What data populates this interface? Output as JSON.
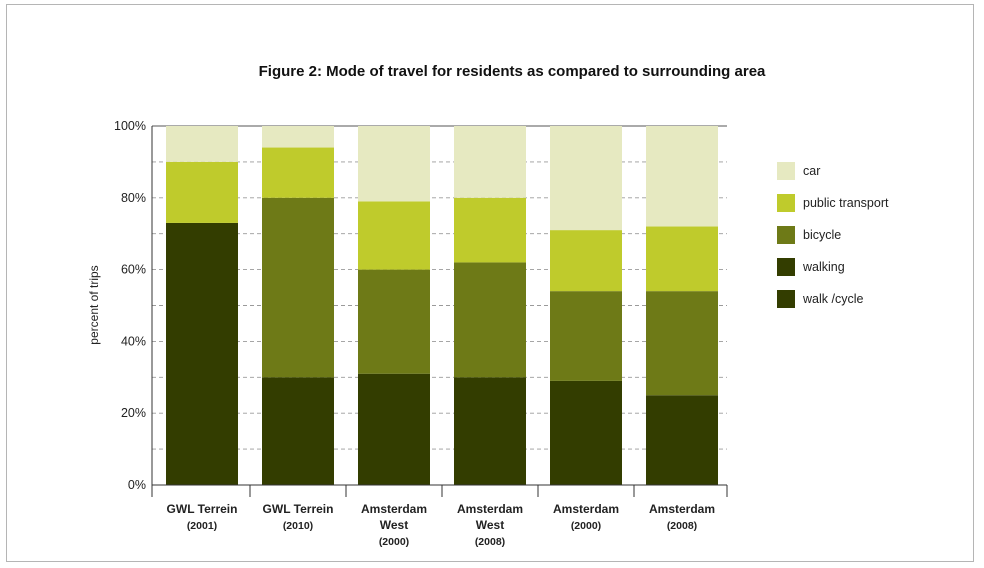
{
  "chart_data": {
    "type": "bar",
    "stacked": true,
    "title": "Figure 2: Mode of travel for residents as compared to surrounding area",
    "xlabel": "",
    "ylabel": "percent of trips",
    "ylim": [
      0,
      100
    ],
    "yticks": [
      "0%",
      "20%",
      "40%",
      "60%",
      "80%",
      "100%"
    ],
    "grid": "horizontal dashed",
    "legend_position": "right",
    "categories": [
      [
        "GWL Terrein",
        "(2001)"
      ],
      [
        "GWL Terrein",
        "(2010)"
      ],
      [
        "Amsterdam",
        "West",
        "(2000)"
      ],
      [
        "Amsterdam",
        "West",
        "(2008)"
      ],
      [
        "Amsterdam",
        "(2000)"
      ],
      [
        "Amsterdam",
        "(2008)"
      ]
    ],
    "series": [
      {
        "name": "walk /cycle",
        "color": "#333d00",
        "values": [
          73,
          0,
          0,
          0,
          0,
          0
        ]
      },
      {
        "name": "walking",
        "color": "#333d00",
        "values": [
          0,
          30,
          31,
          30,
          29,
          25
        ]
      },
      {
        "name": "bicycle",
        "color": "#6e7a17",
        "values": [
          0,
          50,
          29,
          32,
          25,
          29
        ]
      },
      {
        "name": "public transport",
        "color": "#bfcb2c",
        "values": [
          17,
          14,
          19,
          18,
          17,
          18
        ]
      },
      {
        "name": "car",
        "color": "#e6e9c1",
        "values": [
          10,
          6,
          21,
          20,
          29,
          28
        ]
      }
    ],
    "legend_order": [
      "car",
      "public transport",
      "bicycle",
      "walking",
      "walk /cycle"
    ]
  }
}
